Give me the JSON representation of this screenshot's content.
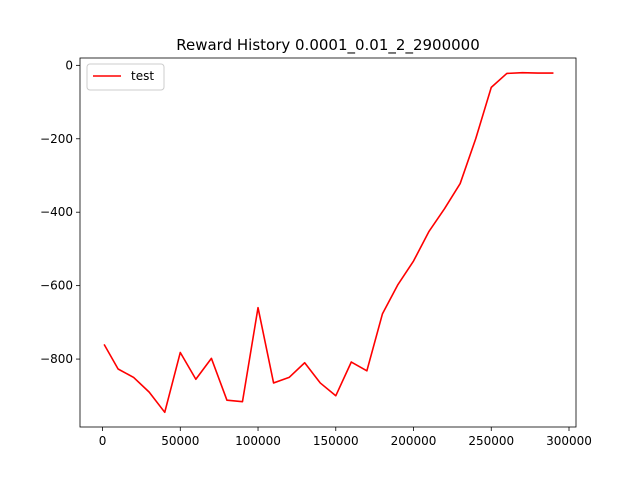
{
  "chart_data": {
    "type": "line",
    "title": "Reward History 0.0001_0.01_2_2900000",
    "xlabel": "",
    "ylabel": "",
    "xlim": [
      -14500,
      304500
    ],
    "ylim": [
      -985,
      20
    ],
    "xticks": [
      0,
      50000,
      100000,
      150000,
      200000,
      250000,
      300000
    ],
    "xtick_labels": [
      "0",
      "50000",
      "100000",
      "150000",
      "200000",
      "250000",
      "300000"
    ],
    "yticks": [
      0,
      -200,
      -400,
      -600,
      -800
    ],
    "ytick_labels": [
      "0",
      "−200",
      "−400",
      "−600",
      "−800"
    ],
    "grid": false,
    "legend_position": "top-left",
    "series": [
      {
        "name": "test",
        "color": "#ff0000",
        "x": [
          1000,
          10000,
          20000,
          30000,
          40000,
          50000,
          60000,
          70000,
          80000,
          90000,
          100000,
          110000,
          120000,
          130000,
          140000,
          150000,
          160000,
          170000,
          180000,
          190000,
          200000,
          210000,
          220000,
          230000,
          240000,
          250000,
          260000,
          270000,
          280000,
          290000
        ],
        "y": [
          -760,
          -827,
          -850,
          -890,
          -945,
          -782,
          -855,
          -798,
          -912,
          -916,
          -660,
          -865,
          -850,
          -810,
          -865,
          -900,
          -808,
          -832,
          -677,
          -597,
          -533,
          -452,
          -390,
          -322,
          -200,
          -60,
          -22,
          -20,
          -21,
          -21
        ]
      }
    ]
  }
}
